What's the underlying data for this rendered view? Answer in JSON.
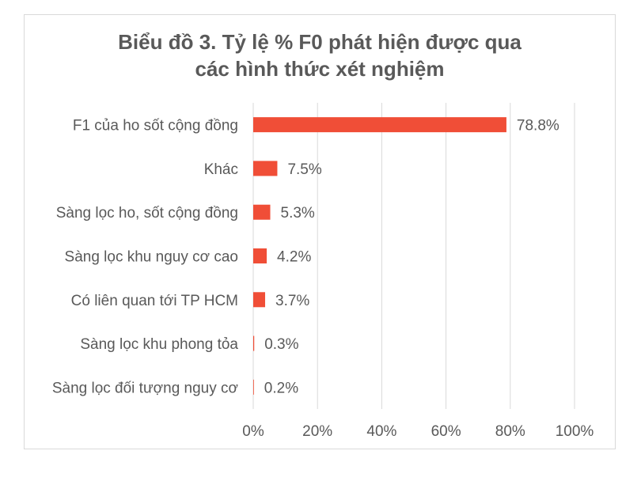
{
  "chart_data": {
    "type": "bar",
    "orientation": "horizontal",
    "title": [
      "Biểu đồ 3. Tỷ lệ % F0 phát hiện được qua",
      "các hình thức xét nghiệm"
    ],
    "categories": [
      "F1 của ho sốt cộng đồng",
      "Khác",
      "Sàng lọc ho, sốt cộng đồng",
      "Sàng lọc khu nguy cơ cao",
      "Có liên quan tới TP HCM",
      "Sàng lọc khu phong tỏa",
      "Sàng lọc đối tượng nguy cơ"
    ],
    "values": [
      78.8,
      7.5,
      5.3,
      4.2,
      3.7,
      0.3,
      0.2
    ],
    "value_labels": [
      "78.8%",
      "7.5%",
      "5.3%",
      "4.2%",
      "3.7%",
      "0.3%",
      "0.2%"
    ],
    "xlim": [
      0,
      100
    ],
    "xticks": [
      "0%",
      "20%",
      "40%",
      "60%",
      "80%",
      "100%"
    ],
    "grid": "vertical",
    "bar_color": "#f04e37",
    "gridline_color": "#d9d9d9",
    "text_color": "#595959"
  }
}
